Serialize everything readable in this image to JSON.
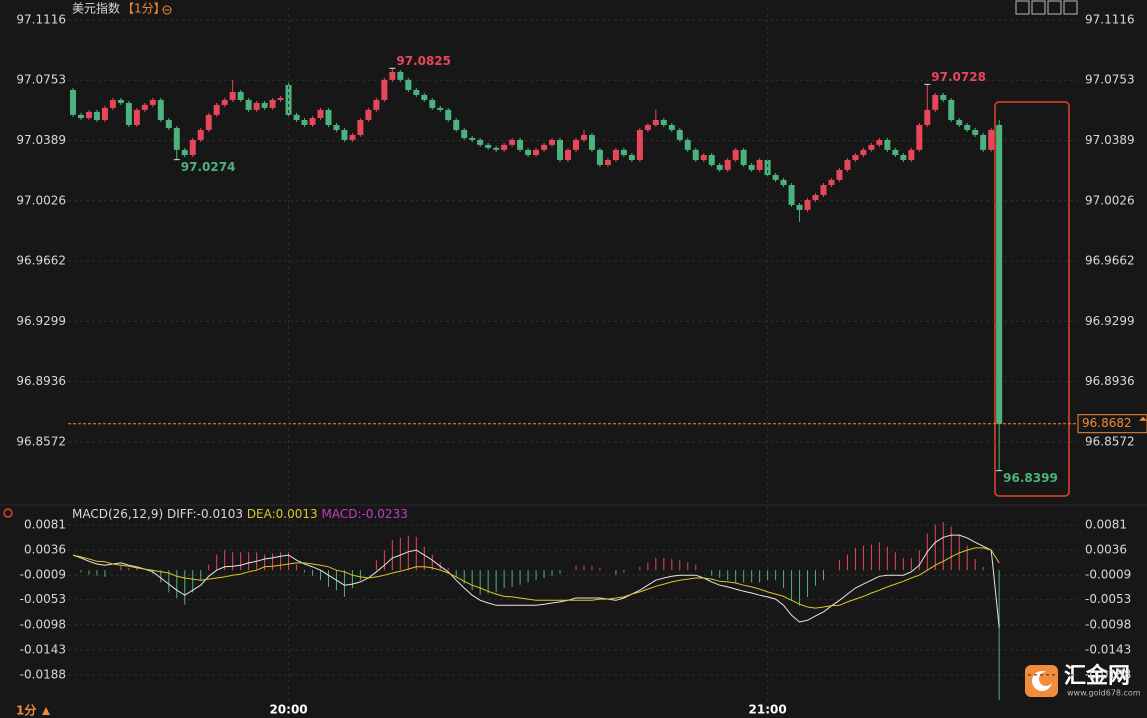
{
  "header": {
    "symbol": "美元指数",
    "interval": "【1分】"
  },
  "footer": {
    "interval": "1分"
  },
  "logo": {
    "name": "汇金网",
    "url": "www.gold678.com"
  },
  "chart_data": [
    {
      "type": "candlestick",
      "up_color": "#e8475b",
      "down_color": "#4cb37e",
      "grid": true,
      "xlim": [
        -1,
        125.5
      ],
      "ylim": [
        96.8222,
        97.1116
      ],
      "yticks": [
        97.1116,
        97.0753,
        97.0389,
        97.0026,
        96.9662,
        96.9299,
        96.8936,
        96.8572
      ],
      "last": 96.8682,
      "last_color": "#f08c3c",
      "annotations": [
        {
          "x": 13,
          "value": 97.0274
        },
        {
          "x": 40,
          "value": 97.0825
        },
        {
          "x": 107,
          "value": 97.0728
        },
        {
          "x": 116,
          "value": 96.8399
        }
      ],
      "candles": [
        [
          97.0694,
          97.0706,
          97.0532,
          97.0544
        ],
        [
          97.0544,
          97.0556,
          97.0513,
          97.0525
        ],
        [
          97.0525,
          97.0574,
          97.0513,
          97.0562
        ],
        [
          97.0562,
          97.0574,
          97.0501,
          97.0513
        ],
        [
          97.0513,
          97.0598,
          97.0501,
          97.0586
        ],
        [
          97.0586,
          97.0646,
          97.0574,
          97.0634
        ],
        [
          97.0634,
          97.0646,
          97.0604,
          97.0616
        ],
        [
          97.0616,
          97.0628,
          97.0471,
          97.0483
        ],
        [
          97.0483,
          97.0586,
          97.0471,
          97.0574
        ],
        [
          97.0574,
          97.0616,
          97.0562,
          97.0604
        ],
        [
          97.0604,
          97.0646,
          97.0592,
          97.0634
        ],
        [
          97.0634,
          97.0646,
          97.0501,
          97.0513
        ],
        [
          97.0513,
          97.0525,
          97.0453,
          97.0465
        ],
        [
          97.0465,
          97.0477,
          97.0274,
          97.0333
        ],
        [
          97.0333,
          97.0345,
          97.029,
          97.0302
        ],
        [
          97.0302,
          97.0405,
          97.029,
          97.0393
        ],
        [
          97.0393,
          97.0465,
          97.0381,
          97.0453
        ],
        [
          97.0453,
          97.0556,
          97.0441,
          97.0544
        ],
        [
          97.0544,
          97.0616,
          97.0532,
          97.0604
        ],
        [
          97.0604,
          97.0646,
          97.0592,
          97.0634
        ],
        [
          97.0634,
          97.0754,
          97.0622,
          97.0682
        ],
        [
          97.0682,
          97.0694,
          97.0622,
          97.0634
        ],
        [
          97.0634,
          97.0646,
          97.0562,
          97.0574
        ],
        [
          97.0574,
          97.0628,
          97.0562,
          97.0616
        ],
        [
          97.0616,
          97.0628,
          97.0574,
          97.0586
        ],
        [
          97.0586,
          97.0646,
          97.0574,
          97.0634
        ],
        [
          97.0634,
          97.0658,
          97.0622,
          97.0646
        ],
        [
          97.0724,
          97.0754,
          97.0532,
          97.0544
        ],
        [
          97.0544,
          97.0556,
          97.0501,
          97.0513
        ],
        [
          97.0513,
          97.0525,
          97.0471,
          97.0483
        ],
        [
          97.0483,
          97.0537,
          97.0471,
          97.0525
        ],
        [
          97.0525,
          97.0586,
          97.0513,
          97.0574
        ],
        [
          97.0574,
          97.0586,
          97.0471,
          97.0483
        ],
        [
          97.0483,
          97.0495,
          97.0441,
          97.0453
        ],
        [
          97.0453,
          97.0465,
          97.0381,
          97.0393
        ],
        [
          97.0393,
          97.0435,
          97.0381,
          97.0423
        ],
        [
          97.0423,
          97.0525,
          97.0411,
          97.0513
        ],
        [
          97.0513,
          97.0586,
          97.0501,
          97.0574
        ],
        [
          97.0574,
          97.0646,
          97.0562,
          97.0634
        ],
        [
          97.0634,
          97.0767,
          97.0622,
          97.0755
        ],
        [
          97.0755,
          97.0825,
          97.0743,
          97.0803
        ],
        [
          97.0803,
          97.0815,
          97.0743,
          97.0755
        ],
        [
          97.0755,
          97.0767,
          97.0682,
          97.0694
        ],
        [
          97.0694,
          97.0706,
          97.0652,
          97.0664
        ],
        [
          97.0664,
          97.0676,
          97.0622,
          97.0634
        ],
        [
          97.0634,
          97.0646,
          97.0574,
          97.0586
        ],
        [
          97.0586,
          97.0598,
          97.0562,
          97.0574
        ],
        [
          97.0574,
          97.0586,
          97.0501,
          97.0513
        ],
        [
          97.0513,
          97.0525,
          97.0441,
          97.0453
        ],
        [
          97.0453,
          97.0465,
          97.0393,
          97.0405
        ],
        [
          97.0405,
          97.0417,
          97.0381,
          97.0393
        ],
        [
          97.0393,
          97.0405,
          97.0351,
          97.0363
        ],
        [
          97.0363,
          97.0375,
          97.0333,
          97.0345
        ],
        [
          97.0345,
          97.0357,
          97.0321,
          97.0333
        ],
        [
          97.0333,
          97.0375,
          97.0321,
          97.0363
        ],
        [
          97.0363,
          97.0405,
          97.0351,
          97.0393
        ],
        [
          97.0393,
          97.0405,
          97.0321,
          97.0333
        ],
        [
          97.0333,
          97.0345,
          97.029,
          97.0302
        ],
        [
          97.0302,
          97.0345,
          97.029,
          97.0333
        ],
        [
          97.0333,
          97.0375,
          97.0321,
          97.0363
        ],
        [
          97.0363,
          97.0405,
          97.0351,
          97.0393
        ],
        [
          97.0393,
          97.0405,
          97.026,
          97.0272
        ],
        [
          97.0272,
          97.0345,
          97.026,
          97.0333
        ],
        [
          97.0333,
          97.0405,
          97.0321,
          97.0393
        ],
        [
          97.0393,
          97.0453,
          97.0381,
          97.0423
        ],
        [
          97.0423,
          97.0435,
          97.0321,
          97.0333
        ],
        [
          97.0333,
          97.0345,
          97.023,
          97.0242
        ],
        [
          97.0242,
          97.0284,
          97.023,
          97.0272
        ],
        [
          97.0272,
          97.0345,
          97.026,
          97.0333
        ],
        [
          97.0333,
          97.0345,
          97.029,
          97.0302
        ],
        [
          97.0302,
          97.0314,
          97.026,
          97.0272
        ],
        [
          97.0272,
          97.0465,
          97.026,
          97.0453
        ],
        [
          97.0453,
          97.0495,
          97.0441,
          97.0483
        ],
        [
          97.0483,
          97.0574,
          97.0471,
          97.0513
        ],
        [
          97.0513,
          97.0525,
          97.0471,
          97.0483
        ],
        [
          97.0483,
          97.0495,
          97.0441,
          97.0453
        ],
        [
          97.0453,
          97.0465,
          97.0381,
          97.0393
        ],
        [
          97.0393,
          97.0405,
          97.0321,
          97.0333
        ],
        [
          97.0333,
          97.0345,
          97.026,
          97.0272
        ],
        [
          97.0272,
          97.0314,
          97.026,
          97.0302
        ],
        [
          97.0302,
          97.0314,
          97.023,
          97.0242
        ],
        [
          97.0242,
          97.0254,
          97.02,
          97.0212
        ],
        [
          97.0212,
          97.0284,
          97.02,
          97.0272
        ],
        [
          97.0272,
          97.0345,
          97.026,
          97.0333
        ],
        [
          97.0333,
          97.0345,
          97.023,
          97.0242
        ],
        [
          97.0242,
          97.0254,
          97.02,
          97.0212
        ],
        [
          97.0212,
          97.0284,
          97.02,
          97.0272
        ],
        [
          97.0272,
          97.0284,
          97.017,
          97.0182
        ],
        [
          97.0182,
          97.0194,
          97.014,
          97.0152
        ],
        [
          97.0152,
          97.0164,
          97.0109,
          97.0121
        ],
        [
          97.0121,
          97.0133,
          96.9989,
          97.0001
        ],
        [
          97.0001,
          97.0013,
          96.9899,
          96.9971
        ],
        [
          96.9971,
          97.0043,
          96.9959,
          97.0031
        ],
        [
          97.0031,
          97.0073,
          97.0019,
          97.0061
        ],
        [
          97.0061,
          97.0133,
          97.0049,
          97.0121
        ],
        [
          97.0121,
          97.0164,
          97.0109,
          97.0152
        ],
        [
          97.0152,
          97.0224,
          97.014,
          97.0212
        ],
        [
          97.0212,
          97.0284,
          97.02,
          97.0272
        ],
        [
          97.0272,
          97.0314,
          97.026,
          97.0302
        ],
        [
          97.0302,
          97.0345,
          97.029,
          97.0333
        ],
        [
          97.0333,
          97.0375,
          97.0321,
          97.0363
        ],
        [
          97.0363,
          97.0405,
          97.0351,
          97.0393
        ],
        [
          97.0393,
          97.0405,
          97.0321,
          97.0333
        ],
        [
          97.0333,
          97.0345,
          97.029,
          97.0302
        ],
        [
          97.0302,
          97.0314,
          97.026,
          97.0272
        ],
        [
          97.0272,
          97.0345,
          97.026,
          97.0333
        ],
        [
          97.0333,
          97.0495,
          97.0321,
          97.0483
        ],
        [
          97.0483,
          97.0728,
          97.0471,
          97.0574
        ],
        [
          97.0574,
          97.0676,
          97.0562,
          97.0664
        ],
        [
          97.0664,
          97.0676,
          97.0622,
          97.0634
        ],
        [
          97.0634,
          97.0646,
          97.0501,
          97.0513
        ],
        [
          97.0513,
          97.0525,
          97.0471,
          97.0483
        ],
        [
          97.0483,
          97.0495,
          97.0441,
          97.0453
        ],
        [
          97.0453,
          97.0465,
          97.0411,
          97.0423
        ],
        [
          97.0423,
          97.0435,
          97.0321,
          97.0333
        ],
        [
          97.0333,
          97.0465,
          97.0321,
          97.0453
        ],
        [
          97.0483,
          97.0513,
          96.8399,
          96.8682
        ]
      ]
    },
    {
      "type": "macd",
      "title": "MACD(26,12,9)",
      "grid": true,
      "xlim": [
        -1,
        125.5
      ],
      "ylim": [
        -0.0233,
        0.0108
      ],
      "yticks": [
        0.0081,
        0.0036,
        -0.0009,
        -0.0053,
        -0.0098,
        -0.0143,
        -0.0188
      ],
      "xticks": [
        {
          "value": 27,
          "label": "20:00"
        },
        {
          "value": 87,
          "label": "21:00"
        }
      ],
      "series": [
        {
          "label": "DIFF:-0.0103",
          "color": "#e6e6e6",
          "values": [
            0.0027,
            0.0022,
            0.0016,
            0.0011,
            0.0009,
            0.0011,
            0.0013,
            0.0009,
            0.0006,
            0.0002,
            -0.0003,
            -0.0014,
            -0.0025,
            -0.0036,
            -0.0045,
            -0.0036,
            -0.0027,
            -0.0011,
            0.0,
            0.0006,
            0.0007,
            0.0009,
            0.0013,
            0.0016,
            0.002,
            0.0022,
            0.0025,
            0.0027,
            0.0018,
            0.0011,
            0.0006,
            0.0,
            -0.0009,
            -0.0018,
            -0.0027,
            -0.0025,
            -0.0021,
            -0.0014,
            -0.0003,
            0.0009,
            0.0022,
            0.0027,
            0.0033,
            0.0036,
            0.0027,
            0.0018,
            0.0007,
            -0.0003,
            -0.0018,
            -0.0032,
            -0.0045,
            -0.0054,
            -0.0059,
            -0.0063,
            -0.0063,
            -0.0063,
            -0.0063,
            -0.0063,
            -0.0063,
            -0.0061,
            -0.0059,
            -0.0057,
            -0.0054,
            -0.005,
            -0.005,
            -0.005,
            -0.005,
            -0.0052,
            -0.0054,
            -0.005,
            -0.0043,
            -0.0036,
            -0.0027,
            -0.0018,
            -0.0014,
            -0.0011,
            -0.0009,
            -0.0009,
            -0.0009,
            -0.0014,
            -0.0021,
            -0.0027,
            -0.003,
            -0.0034,
            -0.0038,
            -0.0041,
            -0.0045,
            -0.0048,
            -0.0052,
            -0.0063,
            -0.0081,
            -0.0093,
            -0.009,
            -0.0082,
            -0.0075,
            -0.0064,
            -0.0054,
            -0.0043,
            -0.0032,
            -0.0025,
            -0.0018,
            -0.0011,
            -0.0009,
            -0.0009,
            -0.0009,
            -0.0003,
            0.0009,
            0.0033,
            0.005,
            0.0059,
            0.0063,
            0.0063,
            0.0058,
            0.005,
            0.0043,
            0.0036,
            -0.0103
          ]
        },
        {
          "label": "DEA:0.0013",
          "color": "#d8c82a",
          "values": [
            0.0027,
            0.0024,
            0.002,
            0.0016,
            0.0015,
            0.0011,
            0.0009,
            0.0007,
            0.0004,
            0.0002,
            0.0,
            -0.0003,
            -0.0005,
            -0.0011,
            -0.0014,
            -0.0016,
            -0.0018,
            -0.0016,
            -0.0014,
            -0.0012,
            -0.0009,
            -0.0007,
            -0.0003,
            0.0,
            0.0006,
            0.0007,
            0.0009,
            0.0011,
            0.0013,
            0.0013,
            0.0011,
            0.0009,
            0.0006,
            0.0,
            -0.0003,
            -0.0009,
            -0.0012,
            -0.0014,
            -0.0012,
            -0.0009,
            -0.0005,
            -0.0002,
            0.0002,
            0.0006,
            0.0006,
            0.0004,
            0.0,
            -0.0005,
            -0.0012,
            -0.002,
            -0.0027,
            -0.0032,
            -0.0038,
            -0.0043,
            -0.0047,
            -0.0048,
            -0.005,
            -0.0052,
            -0.0054,
            -0.0054,
            -0.0054,
            -0.0054,
            -0.0054,
            -0.0054,
            -0.0054,
            -0.0054,
            -0.0052,
            -0.0052,
            -0.005,
            -0.0048,
            -0.0043,
            -0.0039,
            -0.0034,
            -0.0029,
            -0.0025,
            -0.0021,
            -0.0018,
            -0.0016,
            -0.0014,
            -0.0014,
            -0.0016,
            -0.002,
            -0.0021,
            -0.0023,
            -0.0027,
            -0.003,
            -0.0034,
            -0.0039,
            -0.0043,
            -0.0047,
            -0.0054,
            -0.0061,
            -0.0066,
            -0.0068,
            -0.0066,
            -0.0064,
            -0.0063,
            -0.0057,
            -0.0052,
            -0.0047,
            -0.0041,
            -0.0036,
            -0.003,
            -0.0025,
            -0.002,
            -0.0014,
            -0.0009,
            0.0,
            0.0009,
            0.0016,
            0.0024,
            0.0031,
            0.0036,
            0.004,
            0.004,
            0.0036,
            0.0013
          ]
        }
      ],
      "histogram": {
        "label": "MACD:-0.0233",
        "color": "#c43cc8",
        "up_color": "#e8475b",
        "down_color": "#4cb37e",
        "values": [
          0,
          -0.0004,
          -0.0008,
          -0.001,
          -0.0012,
          0,
          0.0008,
          0.0004,
          0.0004,
          0,
          -0.0006,
          -0.0022,
          -0.004,
          -0.005,
          -0.0062,
          -0.004,
          -0.0018,
          0.001,
          0.0028,
          0.0036,
          0.0032,
          0.0032,
          0.0032,
          0.0032,
          0.0028,
          0.003,
          0.0032,
          0.0032,
          0.001,
          -0.0004,
          -0.001,
          -0.0018,
          -0.003,
          -0.0036,
          -0.0048,
          -0.0032,
          -0.0018,
          0,
          0.0018,
          0.0036,
          0.0054,
          0.0058,
          0.0062,
          0.006,
          0.0042,
          0.0028,
          0.0014,
          0.0004,
          -0.0012,
          -0.0024,
          -0.0036,
          -0.0044,
          -0.0042,
          -0.004,
          -0.0032,
          -0.003,
          -0.0026,
          -0.0022,
          -0.0018,
          -0.0014,
          -0.001,
          -0.0006,
          0,
          0.0008,
          0.0008,
          0.0008,
          0.0004,
          0,
          -0.0008,
          -0.0004,
          0,
          0.0006,
          0.0014,
          0.0022,
          0.0022,
          0.002,
          0.0018,
          0.0014,
          0.001,
          0,
          -0.001,
          -0.0014,
          -0.0018,
          -0.0022,
          -0.0022,
          -0.0022,
          -0.0022,
          -0.0018,
          -0.0018,
          -0.0032,
          -0.0054,
          -0.0064,
          -0.0048,
          -0.0028,
          -0.0018,
          0,
          0.0018,
          0.0028,
          0.004,
          0.0044,
          0.0046,
          0.005,
          0.0042,
          0.0032,
          0.0022,
          0.0022,
          0.0036,
          0.0066,
          0.0082,
          0.0086,
          0.0078,
          0.0064,
          0.0044,
          0.002,
          0.0006,
          0,
          -0.0233
        ]
      }
    }
  ]
}
